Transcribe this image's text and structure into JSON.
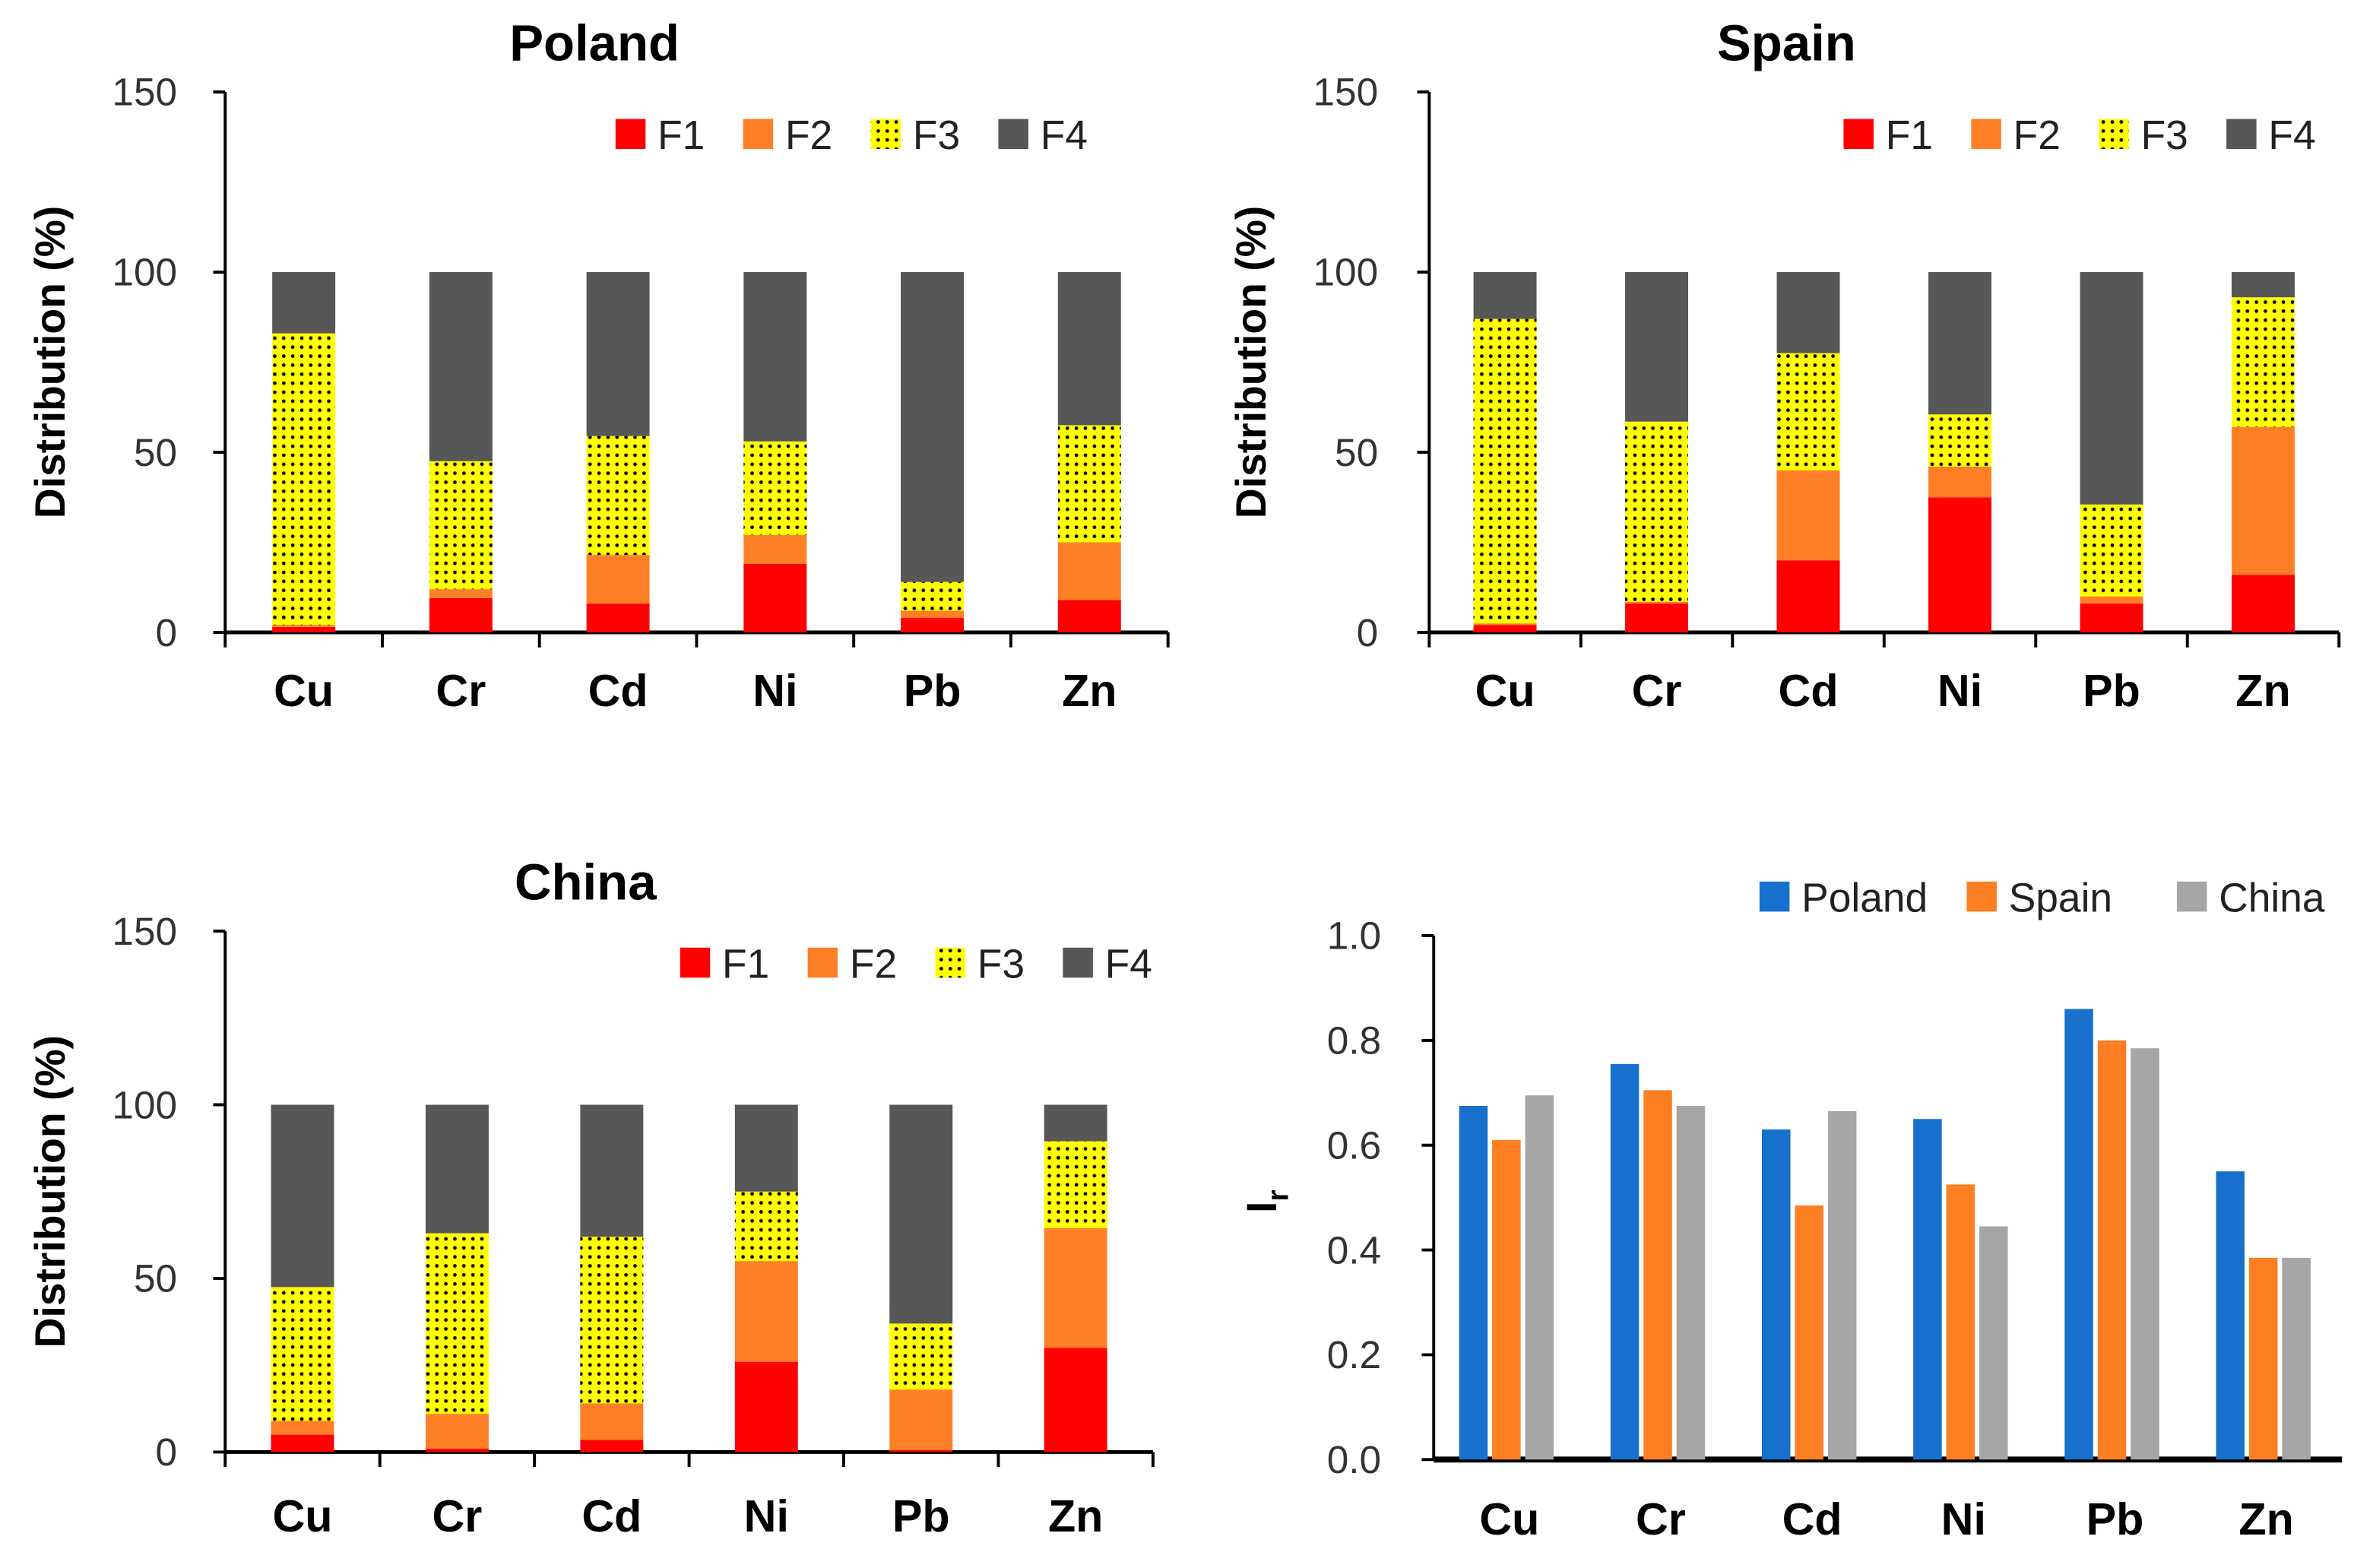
{
  "chart_data": [
    {
      "type": "bar",
      "stacked": true,
      "title": "Poland",
      "ylabel": "Distribution (%)",
      "ylim": [
        0,
        150
      ],
      "yticks": [
        0,
        50,
        100,
        150
      ],
      "categories": [
        "Cu",
        "Cr",
        "Cd",
        "Ni",
        "Pb",
        "Zn"
      ],
      "series": [
        {
          "name": "F1",
          "values": [
            1.5,
            9.5,
            8,
            19,
            4,
            9
          ]
        },
        {
          "name": "F2",
          "values": [
            0.5,
            2.5,
            13.5,
            8,
            2,
            16
          ]
        },
        {
          "name": "F3",
          "values": [
            81,
            35.5,
            33,
            26,
            8,
            32.5
          ]
        },
        {
          "name": "F4",
          "values": [
            17,
            52.5,
            45.5,
            47,
            86,
            42.5
          ]
        }
      ]
    },
    {
      "type": "bar",
      "stacked": true,
      "title": "Spain",
      "ylabel": "Distribution (%)",
      "ylim": [
        0,
        150
      ],
      "yticks": [
        0,
        50,
        100,
        150
      ],
      "categories": [
        "Cu",
        "Cr",
        "Cd",
        "Ni",
        "Pb",
        "Zn"
      ],
      "series": [
        {
          "name": "F1",
          "values": [
            2,
            8,
            20,
            37.5,
            8,
            16
          ]
        },
        {
          "name": "F2",
          "values": [
            0.5,
            0.5,
            25,
            8.5,
            2,
            41
          ]
        },
        {
          "name": "F3",
          "values": [
            84.5,
            50,
            32.5,
            14.5,
            25.5,
            36
          ]
        },
        {
          "name": "F4",
          "values": [
            13,
            41.5,
            22.5,
            39.5,
            64.5,
            7
          ]
        }
      ]
    },
    {
      "type": "bar",
      "stacked": true,
      "title": "China",
      "ylabel": "Distribution (%)",
      "ylim": [
        0,
        150
      ],
      "yticks": [
        0,
        50,
        100,
        150
      ],
      "categories": [
        "Cu",
        "Cr",
        "Cd",
        "Ni",
        "Pb",
        "Zn"
      ],
      "series": [
        {
          "name": "F1",
          "values": [
            5,
            1,
            3.5,
            26,
            0.5,
            30
          ]
        },
        {
          "name": "F2",
          "values": [
            4,
            10,
            10.5,
            29,
            17.5,
            34.5
          ]
        },
        {
          "name": "F3",
          "values": [
            38.5,
            52,
            48,
            20,
            19,
            25
          ]
        },
        {
          "name": "F4",
          "values": [
            52.5,
            37,
            38,
            25,
            63,
            10.5
          ]
        }
      ]
    },
    {
      "type": "bar",
      "stacked": false,
      "title": "",
      "ylabel": "Ir",
      "ylim": [
        0,
        1
      ],
      "yticks": [
        "0.0",
        "0.2",
        "0.4",
        "0.6",
        "0.8",
        "1.0"
      ],
      "categories": [
        "Cu",
        "Cr",
        "Cd",
        "Ni",
        "Pb",
        "Zn"
      ],
      "series": [
        {
          "name": "Poland",
          "values": [
            0.675,
            0.755,
            0.63,
            0.65,
            0.86,
            0.55
          ]
        },
        {
          "name": "Spain",
          "values": [
            0.61,
            0.705,
            0.485,
            0.525,
            0.8,
            0.385
          ]
        },
        {
          "name": "China",
          "values": [
            0.695,
            0.675,
            0.665,
            0.445,
            0.785,
            0.385
          ]
        }
      ]
    }
  ],
  "colors": {
    "F1": "#ff0000",
    "F2": "#ff7f27",
    "F3": "#ffff00",
    "F4": "#575757",
    "Poland": "#1771cc",
    "Spain": "#fd7f23",
    "China": "#a6a6a6"
  }
}
